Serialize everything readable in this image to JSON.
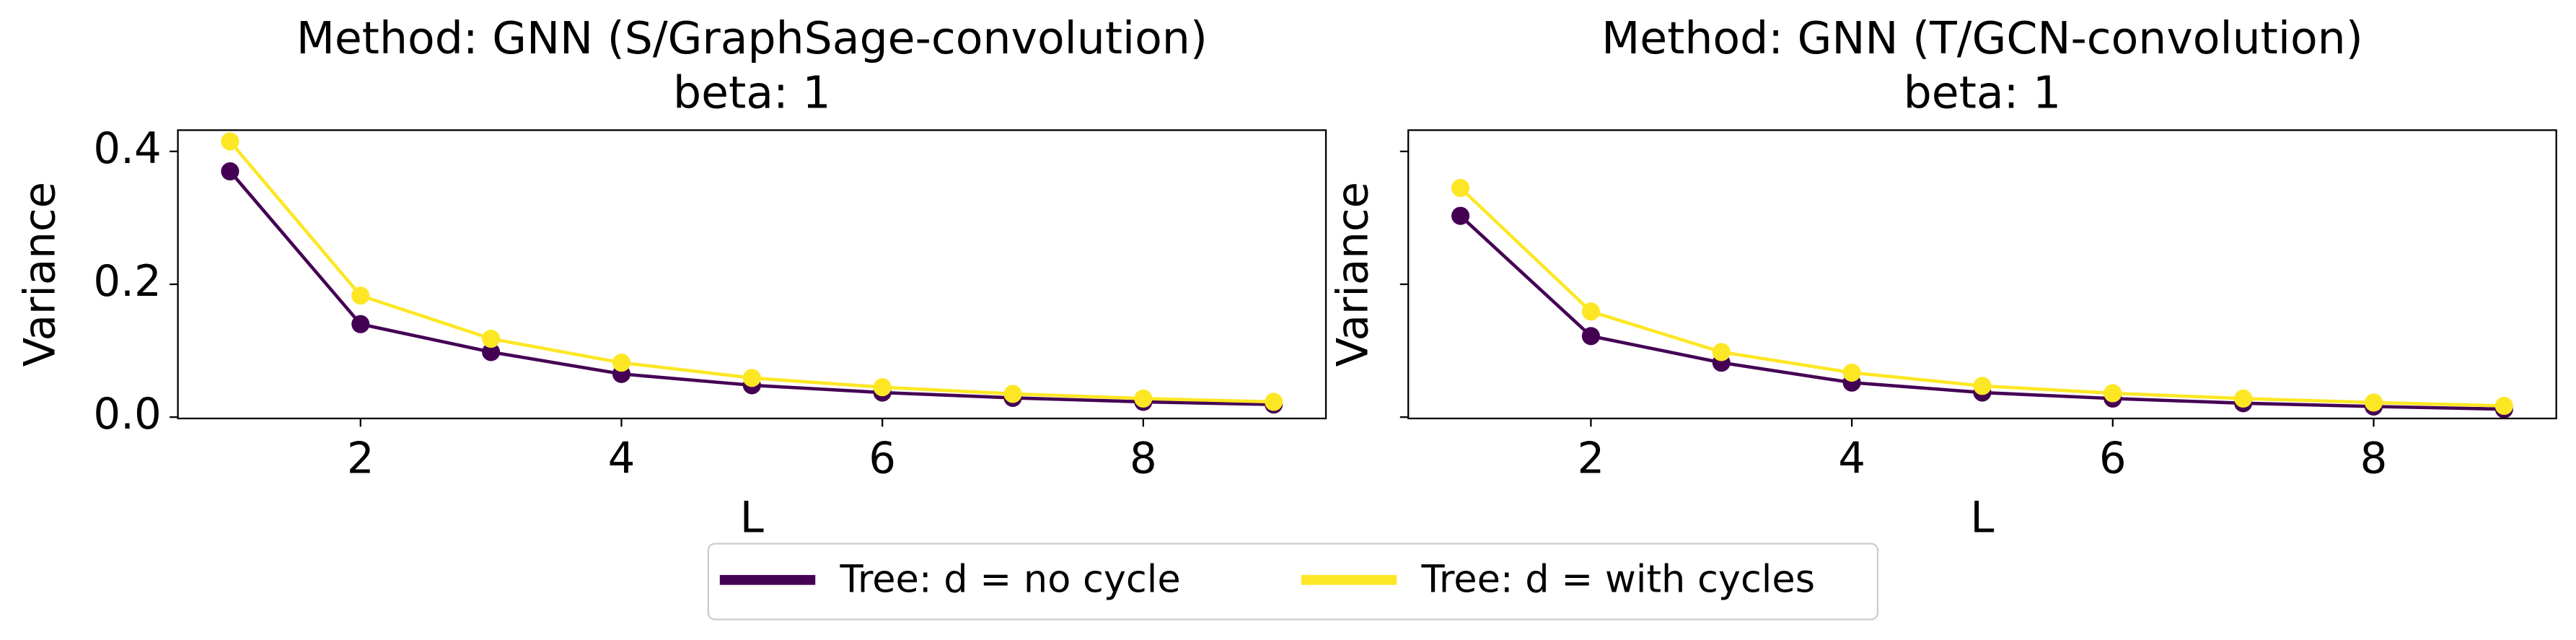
{
  "chart_data": [
    {
      "type": "line",
      "title": "Method: GNN (S/GraphSage-convolution)",
      "subtitle": "beta: 1",
      "x_label": "L",
      "y_label": "Variance",
      "x": [
        1,
        2,
        3,
        4,
        5,
        6,
        7,
        8,
        9
      ],
      "series": [
        {
          "name": "Tree: d = no cycle",
          "color": "#440154",
          "values": [
            0.37,
            0.14,
            0.098,
            0.065,
            0.048,
            0.037,
            0.029,
            0.023,
            0.019
          ]
        },
        {
          "name": "Tree: d = with cycles",
          "color": "#fde725",
          "values": [
            0.415,
            0.183,
            0.118,
            0.082,
            0.059,
            0.045,
            0.035,
            0.028,
            0.023
          ]
        }
      ],
      "xlim": [
        0.6,
        9.4
      ],
      "xticks": [
        2,
        4,
        6,
        8
      ],
      "ylim": [
        -0.002,
        0.432
      ],
      "yticks": [
        {
          "value": 0,
          "label": "0.0"
        },
        {
          "value": 0.2,
          "label": "0.2"
        },
        {
          "value": 0.4,
          "label": "0.4"
        }
      ]
    },
    {
      "type": "line",
      "title": "Method: GNN (T/GCN-convolution)",
      "subtitle": "beta: 1",
      "x_label": "L",
      "y_label": "Variance",
      "x": [
        1,
        2,
        3,
        4,
        5,
        6,
        7,
        8,
        9
      ],
      "series": [
        {
          "name": "Tree: d = no cycle",
          "color": "#440154",
          "values": [
            0.303,
            0.122,
            0.082,
            0.052,
            0.037,
            0.028,
            0.021,
            0.016,
            0.012
          ]
        },
        {
          "name": "Tree: d = with cycles",
          "color": "#fde725",
          "values": [
            0.345,
            0.159,
            0.098,
            0.067,
            0.047,
            0.036,
            0.028,
            0.022,
            0.017
          ]
        }
      ],
      "xlim": [
        0.6,
        9.4
      ],
      "xticks": [
        2,
        4,
        6,
        8
      ],
      "ylim": [
        -0.002,
        0.432
      ],
      "yticks": [
        0,
        0.2,
        0.4
      ]
    }
  ]
}
